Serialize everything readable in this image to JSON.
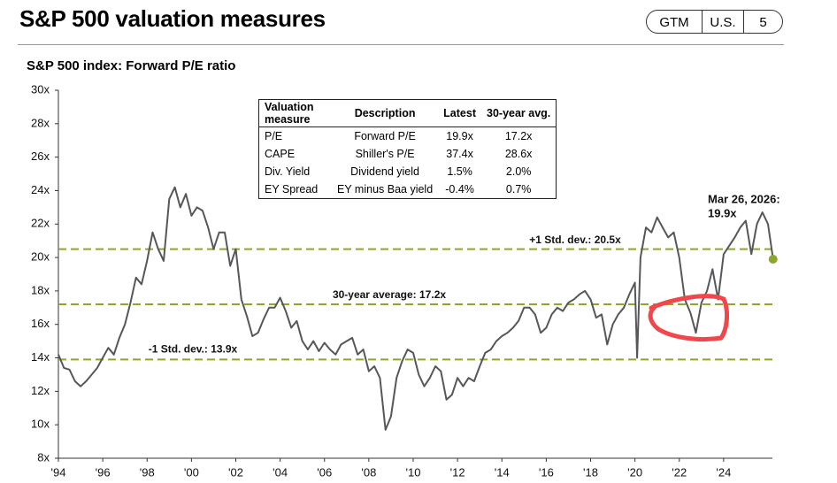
{
  "header": {
    "title": "S&P 500 valuation measures",
    "tags": [
      "GTM",
      "U.S.",
      "5"
    ]
  },
  "chart_data": {
    "type": "line",
    "title": "S&P 500 index: Forward P/E ratio",
    "x": [
      1994.0,
      1994.25,
      1994.5,
      1994.75,
      1995.0,
      1995.25,
      1995.5,
      1995.75,
      1996.0,
      1996.25,
      1996.5,
      1996.75,
      1997.0,
      1997.25,
      1997.5,
      1997.75,
      1998.0,
      1998.25,
      1998.5,
      1998.75,
      1999.0,
      1999.25,
      1999.5,
      1999.75,
      2000.0,
      2000.25,
      2000.5,
      2000.75,
      2001.0,
      2001.25,
      2001.5,
      2001.75,
      2002.0,
      2002.25,
      2002.5,
      2002.75,
      2003.0,
      2003.25,
      2003.5,
      2003.75,
      2004.0,
      2004.25,
      2004.5,
      2004.75,
      2005.0,
      2005.25,
      2005.5,
      2005.75,
      2006.0,
      2006.25,
      2006.5,
      2006.75,
      2007.0,
      2007.25,
      2007.5,
      2007.75,
      2008.0,
      2008.25,
      2008.5,
      2008.75,
      2009.0,
      2009.25,
      2009.5,
      2009.75,
      2010.0,
      2010.25,
      2010.5,
      2010.75,
      2011.0,
      2011.25,
      2011.5,
      2011.75,
      2012.0,
      2012.25,
      2012.5,
      2012.75,
      2013.0,
      2013.25,
      2013.5,
      2013.75,
      2014.0,
      2014.25,
      2014.5,
      2014.75,
      2015.0,
      2015.25,
      2015.5,
      2015.75,
      2016.0,
      2016.25,
      2016.5,
      2016.75,
      2017.0,
      2017.25,
      2017.5,
      2017.75,
      2018.0,
      2018.25,
      2018.5,
      2018.75,
      2019.0,
      2019.25,
      2019.5,
      2019.75,
      2020.0,
      2020.1,
      2020.25,
      2020.5,
      2020.75,
      2021.0,
      2021.25,
      2021.5,
      2021.75,
      2022.0,
      2022.25,
      2022.5,
      2022.75,
      2023.0,
      2023.25,
      2023.5,
      2023.75,
      2024.0,
      2024.25,
      2024.5,
      2024.75,
      2025.0,
      2025.25,
      2025.5,
      2025.75,
      2026.0,
      2026.23
    ],
    "series": [
      {
        "name": "Forward P/E",
        "color": "#55575a",
        "values": [
          14.2,
          13.4,
          13.3,
          12.6,
          12.3,
          12.6,
          13.0,
          13.4,
          14.0,
          14.6,
          14.2,
          15.2,
          16.0,
          17.3,
          18.8,
          18.4,
          19.8,
          21.5,
          20.5,
          19.8,
          23.5,
          24.2,
          23.0,
          23.8,
          22.5,
          23.0,
          22.8,
          21.8,
          20.5,
          21.5,
          21.5,
          19.5,
          20.5,
          17.5,
          16.5,
          15.3,
          15.5,
          16.3,
          17.0,
          17.0,
          17.6,
          16.8,
          15.8,
          16.2,
          15.0,
          14.5,
          15.0,
          14.4,
          14.9,
          14.5,
          14.2,
          14.8,
          15.0,
          15.2,
          14.2,
          14.5,
          13.2,
          13.5,
          12.8,
          9.7,
          10.5,
          12.8,
          13.8,
          14.5,
          14.3,
          13.0,
          12.3,
          12.8,
          13.5,
          13.2,
          11.5,
          11.8,
          12.8,
          12.3,
          12.8,
          12.6,
          13.5,
          14.3,
          14.5,
          15.0,
          15.3,
          15.5,
          15.8,
          16.2,
          17.0,
          17.0,
          16.6,
          15.5,
          15.8,
          16.6,
          17.0,
          16.8,
          17.3,
          17.5,
          17.8,
          18.0,
          17.5,
          16.4,
          16.6,
          14.8,
          16.0,
          16.6,
          17.0,
          17.8,
          18.5,
          14.0,
          20.0,
          21.8,
          21.5,
          22.4,
          21.8,
          21.2,
          21.5,
          20.0,
          17.5,
          16.7,
          15.5,
          17.3,
          18.0,
          19.3,
          17.5,
          20.2,
          20.7,
          21.2,
          21.8,
          22.2,
          20.2,
          22.0,
          22.7,
          22.0,
          19.9
        ]
      }
    ],
    "xlim": [
      1994,
      2026.2
    ],
    "xticks": [
      {
        "value": 1994,
        "label": "'94"
      },
      {
        "value": 1996,
        "label": "'96"
      },
      {
        "value": 1998,
        "label": "'98"
      },
      {
        "value": 2000,
        "label": "'00"
      },
      {
        "value": 2002,
        "label": "'02"
      },
      {
        "value": 2004,
        "label": "'04"
      },
      {
        "value": 2006,
        "label": "'06"
      },
      {
        "value": 2008,
        "label": "'08"
      },
      {
        "value": 2010,
        "label": "'10"
      },
      {
        "value": 2012,
        "label": "'12"
      },
      {
        "value": 2014,
        "label": "'14"
      },
      {
        "value": 2016,
        "label": "'16"
      },
      {
        "value": 2018,
        "label": "'18"
      },
      {
        "value": 2020,
        "label": "'20"
      },
      {
        "value": 2022,
        "label": "'22"
      },
      {
        "value": 2024,
        "label": "'24"
      }
    ],
    "ylim": [
      8,
      30
    ],
    "yticks": [
      {
        "value": 8,
        "label": "8x"
      },
      {
        "value": 10,
        "label": "10x"
      },
      {
        "value": 12,
        "label": "12x"
      },
      {
        "value": 14,
        "label": "14x"
      },
      {
        "value": 16,
        "label": "16x"
      },
      {
        "value": 18,
        "label": "18x"
      },
      {
        "value": 20,
        "label": "20x"
      },
      {
        "value": 22,
        "label": "22x"
      },
      {
        "value": 24,
        "label": "24x"
      },
      {
        "value": 26,
        "label": "26x"
      },
      {
        "value": 28,
        "label": "28x"
      },
      {
        "value": 30,
        "label": "30x"
      }
    ],
    "reference_lines": [
      {
        "value": 20.5,
        "label": "+1 Std. dev.: 20.5x"
      },
      {
        "value": 17.2,
        "label": "30-year average: 17.2x"
      },
      {
        "value": 13.9,
        "label": "-1 Std. dev.: 13.9x"
      }
    ],
    "reference_color": "#8aa82e",
    "latest": {
      "x": 2026.23,
      "value": 19.9,
      "label": "Mar 26, 2026:",
      "value_label": "19.9x"
    }
  },
  "table": {
    "columns": [
      "Valuation measure",
      "Description",
      "Latest",
      "30-year avg."
    ],
    "rows": [
      [
        "P/E",
        "Forward P/E",
        "19.9x",
        "17.2x"
      ],
      [
        "CAPE",
        "Shiller's P/E",
        "37.4x",
        "28.6x"
      ],
      [
        "Div. Yield",
        "Dividend yield",
        "1.5%",
        "2.0%"
      ],
      [
        "EY Spread",
        "EY minus Baa yield",
        "-0.4%",
        "0.7%"
      ]
    ]
  }
}
